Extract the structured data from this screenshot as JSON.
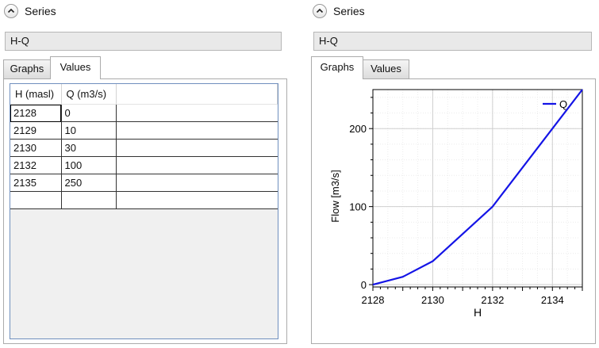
{
  "left": {
    "series_label": "Series",
    "series_name": "H-Q",
    "tabs": [
      {
        "label": "Graphs"
      },
      {
        "label": "Values"
      }
    ],
    "active_tab": "Values",
    "table": {
      "columns": [
        "H (masl)",
        "Q (m3/s)"
      ],
      "rows": [
        [
          "2128",
          "0"
        ],
        [
          "2129",
          "10"
        ],
        [
          "2130",
          "30"
        ],
        [
          "2132",
          "100"
        ],
        [
          "2135",
          "250"
        ],
        [
          "",
          ""
        ]
      ]
    }
  },
  "right": {
    "series_label": "Series",
    "series_name": "H-Q",
    "tabs": [
      {
        "label": "Graphs"
      },
      {
        "label": "Values"
      }
    ],
    "active_tab": "Graphs"
  },
  "icons": {
    "collapse": "chevron-up-icon"
  },
  "colors": {
    "series_line": "#1414e6",
    "selection_border": "#6f8fbe"
  },
  "chart_data": {
    "type": "line",
    "xlabel": "H",
    "ylabel": "Flow [m3/s]",
    "x_ticks": [
      2128,
      2130,
      2132,
      2134
    ],
    "y_ticks": [
      0,
      100,
      200
    ],
    "xlim": [
      2128,
      2135
    ],
    "ylim": [
      -3,
      250
    ],
    "grid": true,
    "legend_position": "top-right",
    "series": [
      {
        "name": "Q",
        "color": "#1414e6",
        "x": [
          2128,
          2129,
          2130,
          2132,
          2135
        ],
        "y": [
          0,
          10,
          30,
          100,
          250
        ]
      }
    ]
  }
}
